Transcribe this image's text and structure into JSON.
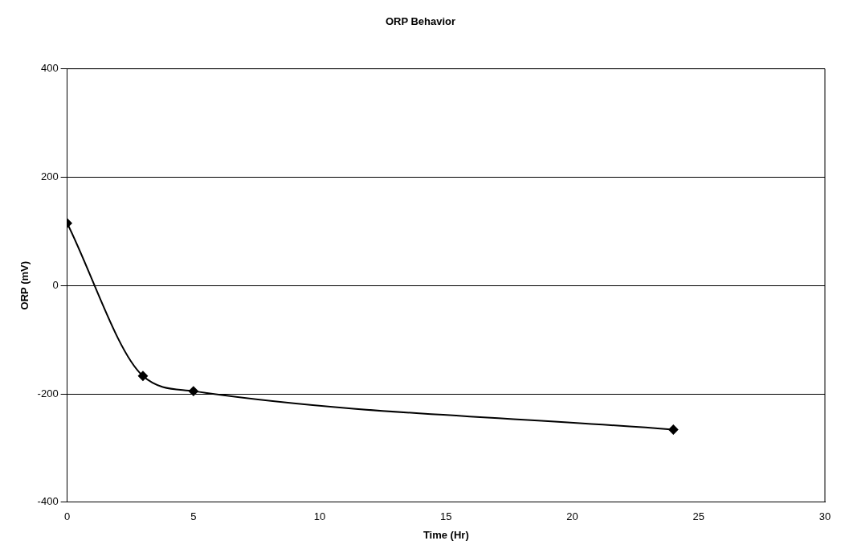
{
  "chart_data": {
    "type": "line",
    "title": "ORP Behavior",
    "xlabel": "Time (Hr)",
    "ylabel": "ORP (mV)",
    "x": [
      0,
      3,
      5,
      24
    ],
    "series": [
      {
        "color": "#000000",
        "values": [
          115,
          -167,
          -195,
          -266
        ]
      }
    ],
    "xlim": [
      0,
      30
    ],
    "xticks": [
      0,
      5,
      10,
      15,
      20,
      25,
      30
    ],
    "ylim": [
      -400,
      400
    ],
    "yticks": [
      -400,
      -200,
      0,
      200,
      400
    ],
    "grid": "y",
    "legend": false,
    "marker": "diamond",
    "line_style": "solid"
  }
}
